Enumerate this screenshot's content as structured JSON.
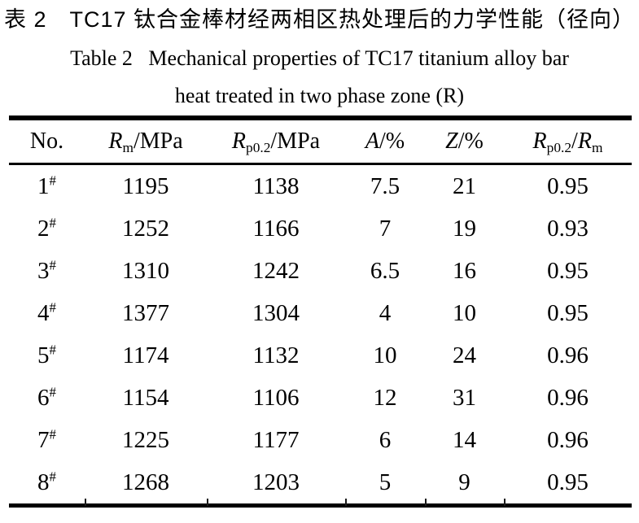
{
  "page": {
    "background_color": "#ffffff",
    "text_color": "#000000"
  },
  "caption": {
    "chinese": "表 2　TC17 钛合金棒材经两相区热处理后的力学性能（径向）",
    "english_line1": "Table 2   Mechanical properties of TC17 titanium alloy bar",
    "english_line2": "heat treated in two phase zone (R)"
  },
  "table": {
    "columns": {
      "no": {
        "label": "No."
      },
      "rm": {
        "base": "R",
        "sub": "m",
        "rest": "/MPa"
      },
      "rp02": {
        "base": "R",
        "sub": "p0.2",
        "rest": "/MPa"
      },
      "a": {
        "base": "A",
        "rest": "/%"
      },
      "z": {
        "base": "Z",
        "rest": "/%"
      },
      "ratio": {
        "base": "R",
        "sub": "p0.2",
        "mid": "/",
        "base2": "R",
        "sub2": "m"
      }
    },
    "rows": [
      {
        "no": "1",
        "mark": "#",
        "rm": "1195",
        "rp02": "1138",
        "a": "7.5",
        "z": "21",
        "ratio": "0.95"
      },
      {
        "no": "2",
        "mark": "#",
        "rm": "1252",
        "rp02": "1166",
        "a": "7",
        "z": "19",
        "ratio": "0.93"
      },
      {
        "no": "3",
        "mark": "#",
        "rm": "1310",
        "rp02": "1242",
        "a": "6.5",
        "z": "16",
        "ratio": "0.95"
      },
      {
        "no": "4",
        "mark": "#",
        "rm": "1377",
        "rp02": "1304",
        "a": "4",
        "z": "10",
        "ratio": "0.95"
      },
      {
        "no": "5",
        "mark": "#",
        "rm": "1174",
        "rp02": "1132",
        "a": "10",
        "z": "24",
        "ratio": "0.96"
      },
      {
        "no": "6",
        "mark": "#",
        "rm": "1154",
        "rp02": "1106",
        "a": "12",
        "z": "31",
        "ratio": "0.96"
      },
      {
        "no": "7",
        "mark": "#",
        "rm": "1225",
        "rp02": "1177",
        "a": "6",
        "z": "14",
        "ratio": "0.96"
      },
      {
        "no": "8",
        "mark": "#",
        "rm": "1268",
        "rp02": "1203",
        "a": "5",
        "z": "9",
        "ratio": "0.95"
      }
    ]
  }
}
